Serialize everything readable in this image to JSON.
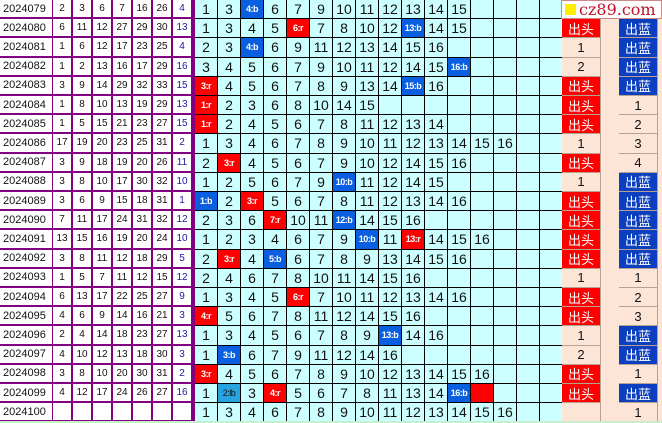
{
  "logo_text": "cz89.com",
  "colors": {
    "red": "#ff0000",
    "blue": "#0a5fe0",
    "light_blue": "#27a3e0",
    "grid": "#ccffff",
    "peach": "#fce4d6",
    "border": "#800080"
  },
  "rows": [
    {
      "issue": "2024079",
      "nums": [
        "2",
        "3",
        "6",
        "7",
        "16",
        "26"
      ],
      "blue": "4",
      "grid": [
        "1",
        "3",
        "4:b",
        "6",
        "7",
        "9",
        "10",
        "11",
        "12",
        "13",
        "14",
        "15"
      ],
      "tou": "",
      "lan": ""
    },
    {
      "issue": "2024080",
      "nums": [
        "6",
        "11",
        "12",
        "27",
        "29",
        "30"
      ],
      "blue": "13",
      "grid": [
        "1",
        "3",
        "4",
        "5",
        "6:r",
        "7",
        "8",
        "10",
        "12",
        "13:b",
        "14",
        "15"
      ],
      "tou": "出头",
      "lan": "出蓝"
    },
    {
      "issue": "2024081",
      "nums": [
        "1",
        "6",
        "12",
        "17",
        "23",
        "25"
      ],
      "blue": "4",
      "grid": [
        "2",
        "3",
        "4:b",
        "6",
        "9",
        "11",
        "12",
        "13",
        "14",
        "15",
        "16"
      ],
      "tou": "1",
      "lan": "出蓝"
    },
    {
      "issue": "2024082",
      "nums": [
        "1",
        "2",
        "13",
        "16",
        "17",
        "29"
      ],
      "blue": "16",
      "grid": [
        "3",
        "4",
        "5",
        "6",
        "7",
        "9",
        "10",
        "11",
        "12",
        "14",
        "15",
        "16:b"
      ],
      "tou": "2",
      "lan": "出蓝"
    },
    {
      "issue": "2024083",
      "nums": [
        "3",
        "9",
        "14",
        "29",
        "32",
        "33"
      ],
      "blue": "15",
      "grid": [
        "3:r",
        "4",
        "5",
        "6",
        "7",
        "8",
        "9",
        "13",
        "14",
        "15:b",
        "16"
      ],
      "tou": "出头",
      "lan": "出蓝"
    },
    {
      "issue": "2024084",
      "nums": [
        "1",
        "8",
        "10",
        "13",
        "19",
        "29"
      ],
      "blue": "13",
      "grid": [
        "1:r",
        "2",
        "3",
        "6",
        "8",
        "10",
        "14",
        "15"
      ],
      "tou": "出头",
      "lan": "1"
    },
    {
      "issue": "2024085",
      "nums": [
        "1",
        "5",
        "15",
        "21",
        "23",
        "27"
      ],
      "blue": "15",
      "grid": [
        "1:r",
        "2",
        "4",
        "5",
        "6",
        "7",
        "8",
        "11",
        "12",
        "13",
        "14"
      ],
      "tou": "出头",
      "lan": "2"
    },
    {
      "issue": "2024086",
      "nums": [
        "17",
        "19",
        "20",
        "23",
        "25",
        "31"
      ],
      "blue": "2",
      "grid": [
        "1",
        "3",
        "4",
        "6",
        "7",
        "8",
        "9",
        "10",
        "11",
        "12",
        "13",
        "14",
        "15",
        "16"
      ],
      "tou": "1",
      "lan": "3"
    },
    {
      "issue": "2024087",
      "nums": [
        "3",
        "9",
        "18",
        "19",
        "20",
        "26"
      ],
      "blue": "11",
      "grid": [
        "2",
        "3:r",
        "4",
        "5",
        "6",
        "7",
        "9",
        "10",
        "12",
        "14",
        "15",
        "16"
      ],
      "tou": "出头",
      "lan": "4"
    },
    {
      "issue": "2024088",
      "nums": [
        "3",
        "8",
        "10",
        "17",
        "30",
        "32"
      ],
      "blue": "10",
      "grid": [
        "1",
        "2",
        "5",
        "6",
        "7",
        "9",
        "10:b",
        "11",
        "12",
        "14",
        "15"
      ],
      "tou": "1",
      "lan": "出蓝"
    },
    {
      "issue": "2024089",
      "nums": [
        "3",
        "6",
        "9",
        "15",
        "18",
        "31"
      ],
      "blue": "1",
      "grid": [
        "1:b",
        "2",
        "3:r",
        "5",
        "6",
        "7",
        "8",
        "11",
        "12",
        "13",
        "14",
        "16"
      ],
      "tou": "出头",
      "lan": "出蓝"
    },
    {
      "issue": "2024090",
      "nums": [
        "7",
        "11",
        "17",
        "24",
        "31",
        "32"
      ],
      "blue": "12",
      "grid": [
        "2",
        "3",
        "6",
        "7:r",
        "10",
        "11",
        "12:b",
        "14",
        "15",
        "16"
      ],
      "tou": "出头",
      "lan": "出蓝"
    },
    {
      "issue": "2024091",
      "nums": [
        "13",
        "15",
        "16",
        "19",
        "20",
        "24"
      ],
      "blue": "10",
      "grid": [
        "1",
        "2",
        "3",
        "4",
        "6",
        "7",
        "9",
        "10:b",
        "11",
        "13:r",
        "14",
        "15",
        "16"
      ],
      "tou": "出头",
      "lan": "出蓝"
    },
    {
      "issue": "2024092",
      "nums": [
        "3",
        "8",
        "11",
        "12",
        "18",
        "29"
      ],
      "blue": "5",
      "grid": [
        "2",
        "3:r",
        "4",
        "5:b",
        "6",
        "7",
        "8",
        "9",
        "13",
        "14",
        "15",
        "16"
      ],
      "tou": "出头",
      "lan": "出蓝"
    },
    {
      "issue": "2024093",
      "nums": [
        "1",
        "5",
        "7",
        "11",
        "12",
        "15"
      ],
      "blue": "12",
      "grid": [
        "2",
        "4",
        "6",
        "7",
        "8",
        "10",
        "11",
        "14",
        "15",
        "16"
      ],
      "tou": "1",
      "lan": "1"
    },
    {
      "issue": "2024094",
      "nums": [
        "6",
        "13",
        "17",
        "22",
        "25",
        "27"
      ],
      "blue": "9",
      "grid": [
        "1",
        "3",
        "4",
        "5",
        "6:r",
        "7",
        "10",
        "11",
        "12",
        "13",
        "14",
        "16"
      ],
      "tou": "出头",
      "lan": "2"
    },
    {
      "issue": "2024095",
      "nums": [
        "4",
        "6",
        "9",
        "14",
        "16",
        "21"
      ],
      "blue": "3",
      "grid": [
        "4:r",
        "5",
        "6",
        "7",
        "8",
        "11",
        "12",
        "14",
        "15",
        "16"
      ],
      "tou": "出头",
      "lan": "3"
    },
    {
      "issue": "2024096",
      "nums": [
        "2",
        "4",
        "14",
        "18",
        "23",
        "27"
      ],
      "blue": "13",
      "grid": [
        "1",
        "3",
        "4",
        "5",
        "6",
        "7",
        "8",
        "9",
        "13:b",
        "14",
        "16"
      ],
      "tou": "1",
      "lan": "出蓝"
    },
    {
      "issue": "2024097",
      "nums": [
        "4",
        "10",
        "12",
        "13",
        "18",
        "30"
      ],
      "blue": "3",
      "grid": [
        "1",
        "3:b",
        "6",
        "7",
        "9",
        "11",
        "12",
        "14",
        "16"
      ],
      "tou": "2",
      "lan": "出蓝"
    },
    {
      "issue": "2024098",
      "nums": [
        "3",
        "8",
        "10",
        "20",
        "30",
        "31"
      ],
      "blue": "2",
      "grid": [
        "3:r",
        "4",
        "5",
        "6",
        "7",
        "8",
        "9",
        "10",
        "12",
        "13",
        "14",
        "15",
        "16"
      ],
      "tou": "出头",
      "lan": "1"
    },
    {
      "issue": "2024099",
      "nums": [
        "4",
        "12",
        "17",
        "24",
        "26",
        "27"
      ],
      "blue": "16",
      "grid": [
        "1",
        "2:lb",
        "3",
        "4:r",
        "5",
        "6",
        "7",
        "8",
        "11",
        "13",
        "14",
        "16:b",
        ":r"
      ],
      "tou": "出头",
      "lan": "出蓝"
    },
    {
      "issue": "2024100",
      "nums": [
        "",
        "",
        "",
        "",
        "",
        ""
      ],
      "blue": "",
      "grid": [
        "1",
        "3",
        "4",
        "6",
        "7",
        "8",
        "9",
        "10",
        "11",
        "12",
        "13",
        "14",
        "15",
        "16"
      ],
      "tou": "",
      "lan": "1"
    }
  ]
}
